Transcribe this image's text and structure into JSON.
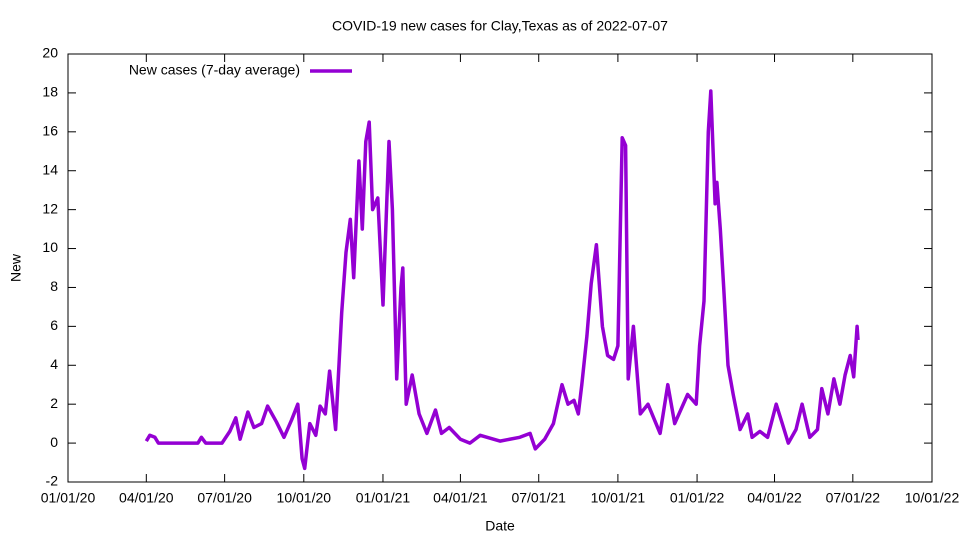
{
  "chart_data": {
    "type": "line",
    "title": "COVID-19 new cases for Clay,Texas as of 2022-07-07",
    "x_label": "Date",
    "y_label": "New",
    "legend": "top-left",
    "x": [
      "2020-04-01",
      "2020-04-05",
      "2020-04-11",
      "2020-04-15",
      "2020-05-31",
      "2020-06-04",
      "2020-06-09",
      "2020-06-28",
      "2020-07-07",
      "2020-07-14",
      "2020-07-19",
      "2020-07-28",
      "2020-08-04",
      "2020-08-13",
      "2020-08-20",
      "2020-08-30",
      "2020-09-08",
      "2020-09-17",
      "2020-09-24",
      "2020-09-29",
      "2020-10-02",
      "2020-10-08",
      "2020-10-15",
      "2020-10-20",
      "2020-10-26",
      "2020-10-31",
      "2020-11-07",
      "2020-11-14",
      "2020-11-19",
      "2020-11-24",
      "2020-11-28",
      "2020-12-04",
      "2020-12-08",
      "2020-12-12",
      "2020-12-16",
      "2020-12-20",
      "2020-12-26",
      "2020-12-30",
      "2021-01-01",
      "2021-01-08",
      "2021-01-12",
      "2021-01-17",
      "2021-01-22",
      "2021-01-24",
      "2021-01-28",
      "2021-02-04",
      "2021-02-12",
      "2021-02-21",
      "2021-03-03",
      "2021-03-10",
      "2021-03-19",
      "2021-04-01",
      "2021-04-12",
      "2021-04-24",
      "2021-05-17",
      "2021-06-09",
      "2021-06-21",
      "2021-06-27",
      "2021-07-08",
      "2021-07-18",
      "2021-07-28",
      "2021-08-04",
      "2021-08-11",
      "2021-08-16",
      "2021-08-20",
      "2021-08-26",
      "2021-08-31",
      "2021-09-06",
      "2021-09-13",
      "2021-09-19",
      "2021-09-26",
      "2021-10-01",
      "2021-10-06",
      "2021-10-10",
      "2021-10-13",
      "2021-10-19",
      "2021-10-27",
      "2021-11-05",
      "2021-11-19",
      "2021-11-28",
      "2021-12-06",
      "2021-12-21",
      "2021-12-31",
      "2022-01-04",
      "2022-01-09",
      "2022-01-14",
      "2022-01-17",
      "2022-01-22",
      "2022-01-24",
      "2022-01-28",
      "2022-02-01",
      "2022-02-06",
      "2022-02-12",
      "2022-02-20",
      "2022-03-01",
      "2022-03-06",
      "2022-03-15",
      "2022-03-24",
      "2022-04-03",
      "2022-04-10",
      "2022-04-17",
      "2022-04-26",
      "2022-05-03",
      "2022-05-12",
      "2022-05-21",
      "2022-05-26",
      "2022-06-02",
      "2022-06-09",
      "2022-06-16",
      "2022-06-22",
      "2022-06-28",
      "2022-07-02",
      "2022-07-06",
      "2022-07-07"
    ],
    "series": [
      {
        "name": "New cases (7-day average)",
        "color": "#9400d3",
        "values": [
          0.1,
          0.4,
          0.3,
          0,
          0,
          0.3,
          0,
          0,
          0.6,
          1.3,
          0.2,
          1.6,
          0.8,
          1.0,
          1.9,
          1.1,
          0.3,
          1.2,
          2.0,
          -0.8,
          -1.3,
          1.0,
          0.4,
          1.9,
          1.5,
          3.7,
          0.7,
          6.7,
          9.8,
          11.5,
          8.5,
          14.5,
          11,
          15.5,
          16.5,
          12,
          12.6,
          9,
          7.1,
          15.5,
          12,
          3.3,
          8,
          9,
          2,
          3.5,
          1.5,
          0.5,
          1.7,
          0.5,
          0.8,
          0.2,
          0,
          0.4,
          0.1,
          0.3,
          0.5,
          -0.3,
          0.2,
          1,
          3,
          2,
          2.2,
          1.5,
          3,
          5.5,
          8.2,
          10.2,
          6,
          4.5,
          4.3,
          5,
          15.7,
          15.3,
          3.3,
          6,
          1.5,
          2,
          0.5,
          3,
          1,
          2.5,
          2,
          5,
          7.3,
          16,
          18.1,
          12.3,
          13.4,
          11,
          8,
          4,
          2.5,
          0.7,
          1.5,
          0.3,
          0.6,
          0.3,
          2,
          1,
          0,
          0.7,
          2,
          0.3,
          0.7,
          2.8,
          1.5,
          3.3,
          2,
          3.5,
          4.5,
          3.4,
          6,
          5.3
        ]
      }
    ],
    "xlim": [
      "2020-01-01",
      "2022-10-01"
    ],
    "xticks": [
      {
        "value": "2020-01-01",
        "label": "01/01/20"
      },
      {
        "value": "2020-04-01",
        "label": "04/01/20"
      },
      {
        "value": "2020-07-01",
        "label": "07/01/20"
      },
      {
        "value": "2020-10-01",
        "label": "10/01/20"
      },
      {
        "value": "2021-01-01",
        "label": "01/01/21"
      },
      {
        "value": "2021-04-01",
        "label": "04/01/21"
      },
      {
        "value": "2021-07-01",
        "label": "07/01/21"
      },
      {
        "value": "2021-10-01",
        "label": "10/01/21"
      },
      {
        "value": "2022-01-01",
        "label": "01/01/22"
      },
      {
        "value": "2022-04-01",
        "label": "04/01/22"
      },
      {
        "value": "2022-07-01",
        "label": "07/01/22"
      },
      {
        "value": "2022-10-01",
        "label": "10/01/22"
      }
    ],
    "ylim": [
      -2,
      20
    ],
    "yticks": [
      -2,
      0,
      2,
      4,
      6,
      8,
      10,
      12,
      14,
      16,
      18,
      20
    ]
  }
}
